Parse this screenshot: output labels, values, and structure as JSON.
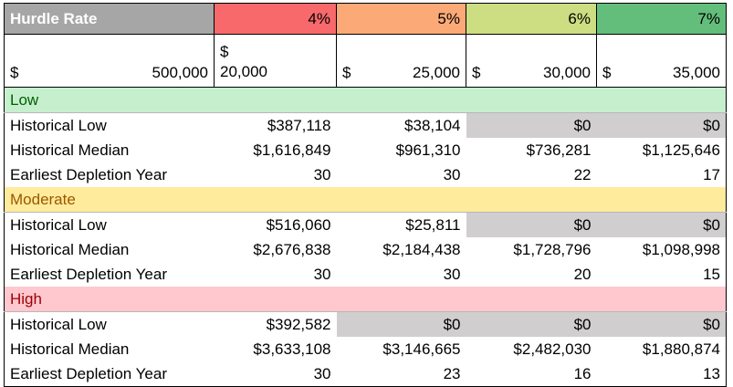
{
  "header": {
    "title": "Hurdle Rate",
    "rates": [
      "4%",
      "5%",
      "6%",
      "7%"
    ]
  },
  "amounts": {
    "symbol": "$",
    "base": "500,000",
    "values": [
      "20,000",
      "25,000",
      "30,000",
      "35,000"
    ]
  },
  "sections": [
    {
      "label": "Low",
      "rows": [
        {
          "label": "Historical Low",
          "values": [
            "$387,118",
            "$38,104",
            "$0",
            "$0"
          ]
        },
        {
          "label": "Historical Median",
          "values": [
            "$1,616,849",
            "$961,310",
            "$736,281",
            "$1,125,646"
          ]
        },
        {
          "label": "Earliest Depletion Year",
          "values": [
            "30",
            "30",
            "22",
            "17"
          ]
        }
      ]
    },
    {
      "label": "Moderate",
      "rows": [
        {
          "label": "Historical Low",
          "values": [
            "$516,060",
            "$25,811",
            "$0",
            "$0"
          ]
        },
        {
          "label": "Historical Median",
          "values": [
            "$2,676,838",
            "$2,184,438",
            "$1,728,796",
            "$1,098,998"
          ]
        },
        {
          "label": "Earliest Depletion Year",
          "values": [
            "30",
            "30",
            "20",
            "15"
          ]
        }
      ]
    },
    {
      "label": "High",
      "rows": [
        {
          "label": "Historical Low",
          "values": [
            "$392,582",
            "$0",
            "$0",
            "$0"
          ]
        },
        {
          "label": "Historical Median",
          "values": [
            "$3,633,108",
            "$3,146,665",
            "$2,482,030",
            "$1,880,874"
          ]
        },
        {
          "label": "Earliest Depletion Year",
          "values": [
            "30",
            "23",
            "16",
            "13"
          ]
        }
      ]
    }
  ],
  "colors": {
    "rate_4": "#f8696b",
    "rate_5": "#fbaa77",
    "rate_6": "#cddd82",
    "rate_7": "#63be7b",
    "low_fill": "#c6efce",
    "moderate_fill": "#ffeb9c",
    "high_fill": "#ffc7ce",
    "zero_fill": "#d0cece"
  }
}
